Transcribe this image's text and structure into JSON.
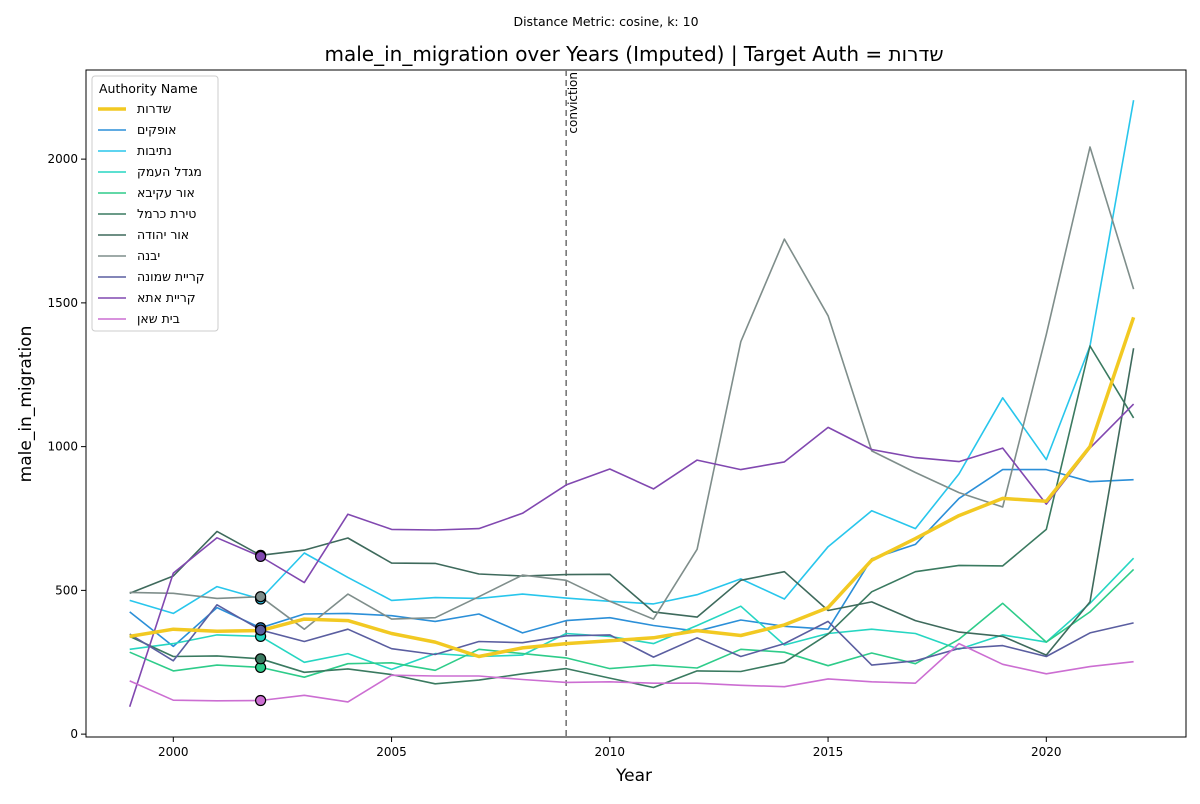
{
  "chart_data": {
    "type": "line",
    "suptitle": "Distance Metric: cosine, k: 10",
    "title": "male_in_migration over Years (Imputed) | Target Auth = שדרות",
    "xlabel": "Year",
    "ylabel": "male_in_migration",
    "xlim": [
      1998,
      2023.2
    ],
    "ylim": [
      -10,
      2310
    ],
    "x_ticks": [
      2000,
      2005,
      2010,
      2015,
      2020
    ],
    "y_ticks": [
      0,
      500,
      1000,
      1500,
      2000
    ],
    "grid": false,
    "legend": {
      "title": "Authority Name",
      "placement": "top-left"
    },
    "annotation": {
      "x": 2009,
      "text": "conviction",
      "style": "dashed vertical line"
    },
    "x": [
      1999,
      2000,
      2001,
      2002,
      2003,
      2004,
      2005,
      2006,
      2007,
      2008,
      2009,
      2010,
      2011,
      2012,
      2013,
      2014,
      2015,
      2016,
      2017,
      2018,
      2019,
      2020,
      2021,
      2022
    ],
    "series": [
      {
        "name": "שדרות",
        "color": "#f2c922",
        "width": 3.5,
        "target": true,
        "values": [
          340,
          365,
          358,
          360,
          400,
          395,
          350,
          320,
          270,
          300,
          315,
          325,
          335,
          360,
          343,
          380,
          440,
          605,
          680,
          760,
          820,
          810,
          1000,
          1450
        ]
      },
      {
        "name": "אופקים",
        "color": "#2b8fd8",
        "width": 1.6,
        "values": [
          425,
          305,
          440,
          370,
          418,
          420,
          412,
          392,
          418,
          352,
          395,
          405,
          378,
          358,
          397,
          375,
          365,
          610,
          660,
          820,
          920,
          920,
          878,
          885
        ]
      },
      {
        "name": "נתיבות",
        "color": "#28c6ec",
        "width": 1.6,
        "values": [
          465,
          420,
          513,
          470,
          630,
          545,
          465,
          475,
          472,
          487,
          473,
          462,
          453,
          485,
          540,
          470,
          652,
          777,
          715,
          905,
          1170,
          955,
          1350,
          2205
        ]
      },
      {
        "name": "מגדל העמק",
        "color": "#26d6c2",
        "width": 1.6,
        "values": [
          295,
          315,
          345,
          340,
          250,
          280,
          225,
          280,
          270,
          275,
          350,
          340,
          315,
          378,
          445,
          310,
          350,
          365,
          350,
          295,
          345,
          320,
          455,
          612
        ]
      },
      {
        "name": "אור עקיבא",
        "color": "#2ecc8a",
        "width": 1.6,
        "values": [
          285,
          220,
          240,
          232,
          198,
          245,
          248,
          222,
          295,
          280,
          265,
          228,
          240,
          230,
          295,
          285,
          238,
          282,
          245,
          330,
          455,
          320,
          425,
          573
        ]
      },
      {
        "name": "טירת כרמל",
        "color": "#3a7a60",
        "width": 1.6,
        "values": [
          340,
          270,
          272,
          262,
          215,
          227,
          207,
          175,
          188,
          210,
          228,
          195,
          162,
          220,
          218,
          250,
          348,
          495,
          565,
          587,
          585,
          712,
          1350,
          1100
        ]
      },
      {
        "name": "אור יהודה",
        "color": "#3e6a5c",
        "width": 1.6,
        "values": [
          490,
          550,
          705,
          622,
          640,
          682,
          595,
          594,
          557,
          550,
          555,
          556,
          425,
          407,
          535,
          565,
          430,
          460,
          395,
          355,
          340,
          275,
          460,
          1342
        ]
      },
      {
        "name": "יבנה",
        "color": "#7f8e8b",
        "width": 1.6,
        "values": [
          493,
          490,
          472,
          478,
          365,
          487,
          400,
          405,
          478,
          553,
          535,
          462,
          400,
          643,
          1365,
          1722,
          1455,
          985,
          910,
          840,
          790,
          1390,
          2042,
          1548
        ]
      },
      {
        "name": "קריית שמונה",
        "color": "#5a5ea0",
        "width": 1.6,
        "values": [
          348,
          255,
          450,
          362,
          322,
          365,
          297,
          277,
          322,
          318,
          342,
          345,
          268,
          335,
          270,
          315,
          392,
          240,
          255,
          298,
          308,
          270,
          352,
          387
        ]
      },
      {
        "name": "קריית אתא",
        "color": "#8148b0",
        "width": 1.6,
        "values": [
          95,
          560,
          683,
          618,
          527,
          765,
          712,
          710,
          715,
          768,
          867,
          922,
          853,
          953,
          920,
          947,
          1067,
          990,
          962,
          948,
          995,
          800,
          995,
          1148
        ]
      },
      {
        "name": "בית שאן",
        "color": "#cc6ed2",
        "width": 1.6,
        "values": [
          185,
          118,
          116,
          117,
          135,
          112,
          205,
          202,
          202,
          190,
          180,
          182,
          177,
          177,
          170,
          165,
          192,
          182,
          177,
          315,
          243,
          210,
          235,
          252
        ]
      }
    ]
  }
}
